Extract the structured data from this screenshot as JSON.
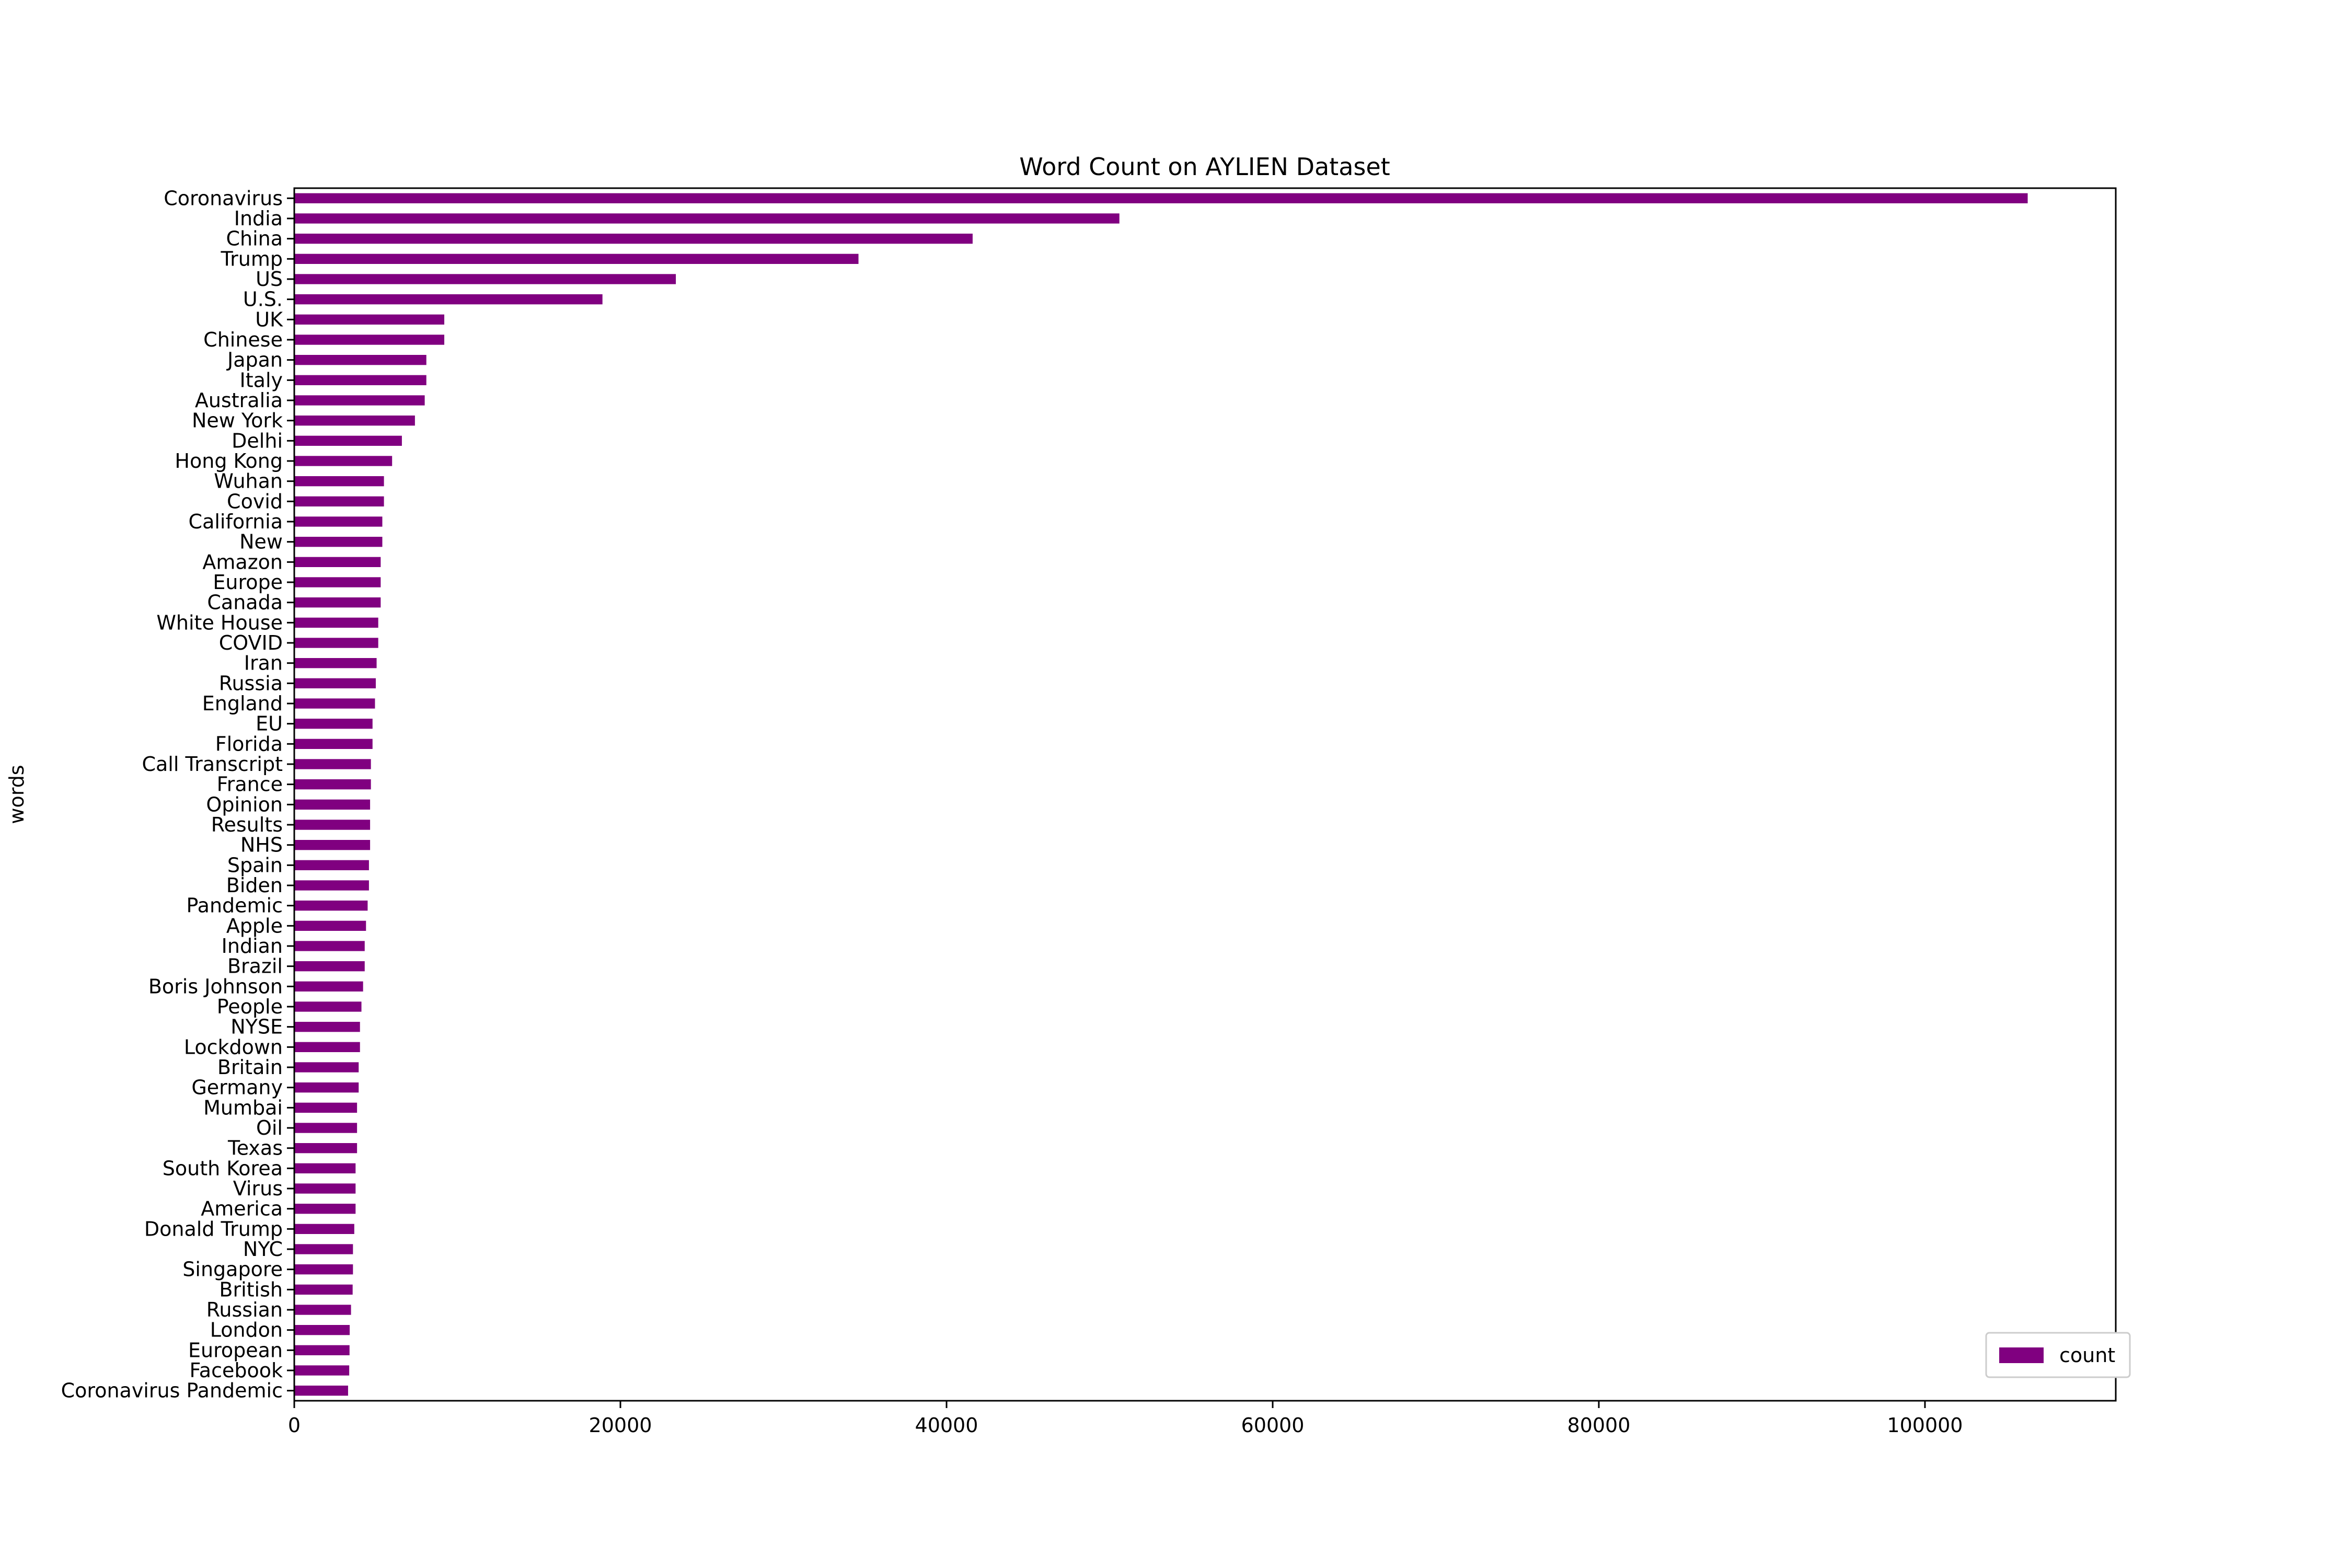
{
  "chart_data": {
    "type": "bar",
    "orientation": "horizontal",
    "title": "Word Count on AYLIEN Dataset",
    "xlabel": "",
    "ylabel": "words",
    "xlim": [
      0,
      111700
    ],
    "xticks": [
      0,
      20000,
      40000,
      60000,
      80000,
      100000
    ],
    "xtick_labels": [
      "0",
      "20000",
      "40000",
      "60000",
      "80000",
      "100000"
    ],
    "grid": false,
    "legend": {
      "placement": "lower-right",
      "entries": [
        "count"
      ]
    },
    "bar_color": "#800080",
    "categories": [
      "Coronavirus",
      "India",
      "China",
      "Trump",
      "US",
      "U.S.",
      "UK",
      "Chinese",
      "Japan",
      "Italy",
      "Australia",
      "New York",
      "Delhi",
      "Hong Kong",
      "Wuhan",
      "Covid",
      "California",
      "New",
      "Amazon",
      "Europe",
      "Canada",
      "White House",
      "COVID",
      "Iran",
      "Russia",
      "England",
      "EU",
      "Florida",
      "Call Transcript",
      "France",
      "Opinion",
      "Results",
      "NHS",
      "Spain",
      "Biden",
      "Pandemic",
      "Apple",
      "Indian",
      "Brazil",
      "Boris Johnson",
      "People",
      "NYSE",
      "Lockdown",
      "Britain",
      "Germany",
      "Mumbai",
      "Oil",
      "Texas",
      "South Korea",
      "Virus",
      "America",
      "Donald Trump",
      "NYC",
      "Singapore",
      "British",
      "Russian",
      "London",
      "European",
      "Facebook",
      "Coronavirus Pandemic"
    ],
    "series": [
      {
        "name": "count",
        "values": [
          106300,
          50600,
          41600,
          34600,
          23400,
          18900,
          9200,
          9200,
          8100,
          8100,
          8000,
          7400,
          6600,
          6000,
          5500,
          5500,
          5400,
          5400,
          5300,
          5300,
          5300,
          5150,
          5150,
          5050,
          5000,
          4950,
          4800,
          4800,
          4700,
          4700,
          4650,
          4650,
          4650,
          4580,
          4580,
          4500,
          4400,
          4320,
          4320,
          4220,
          4120,
          4030,
          4030,
          3950,
          3950,
          3850,
          3850,
          3850,
          3760,
          3760,
          3760,
          3680,
          3600,
          3600,
          3580,
          3480,
          3400,
          3390,
          3370,
          3300
        ]
      }
    ]
  }
}
